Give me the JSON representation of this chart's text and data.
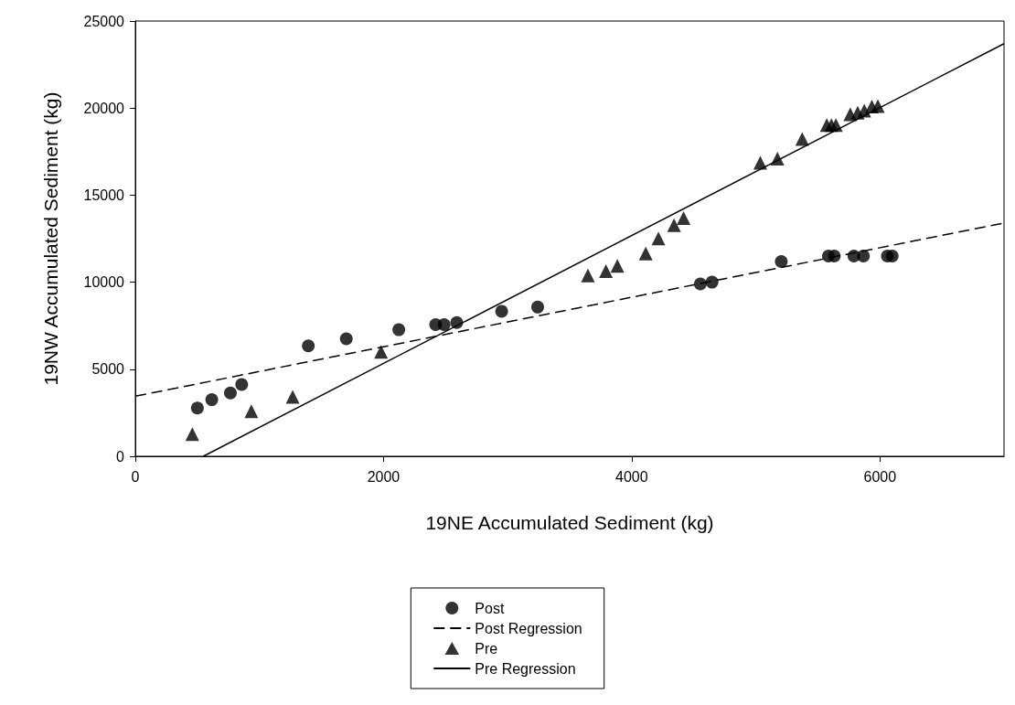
{
  "chart_data": {
    "type": "scatter",
    "xlabel": "19NE Accumulated Sediment (kg)",
    "ylabel": "19NW Accumulated Sediment (kg)",
    "xlim": [
      0,
      7000
    ],
    "ylim": [
      0,
      25000
    ],
    "xticks": [
      0,
      2000,
      4000,
      6000
    ],
    "yticks": [
      0,
      5000,
      10000,
      15000,
      20000,
      25000
    ],
    "grid": false,
    "legend": "bottom",
    "series": [
      {
        "name": "Post",
        "marker": "circle",
        "color": "#000000",
        "x": [
          500,
          616,
          766,
          857,
          1394,
          1700,
          2123,
          2420,
          2488,
          2590,
          2952,
          3242,
          4553,
          4647,
          5205,
          5585,
          5632,
          5790,
          5867,
          6060,
          6099
        ],
        "values": [
          2770,
          3250,
          3640,
          4120,
          6340,
          6750,
          7270,
          7560,
          7560,
          7680,
          8330,
          8570,
          9900,
          10000,
          11190,
          11500,
          11500,
          11500,
          11500,
          11500,
          11500
        ]
      },
      {
        "name": "Post Regression",
        "type": "line",
        "marker": "none",
        "line_style": "dashed",
        "color": "#000000",
        "x": [
          0,
          7000
        ],
        "values": [
          3450,
          13400
        ]
      },
      {
        "name": "Pre",
        "marker": "triangle",
        "color": "#000000",
        "x": [
          459,
          935,
          1268,
          1980,
          3647,
          3792,
          3884,
          4113,
          4215,
          4341,
          4418,
          5036,
          5174,
          5374,
          5572,
          5609,
          5645,
          5761,
          5821,
          5874,
          5935,
          5983
        ],
        "values": [
          1270,
          2590,
          3420,
          6000,
          10380,
          10630,
          10940,
          11650,
          12510,
          13280,
          13680,
          16860,
          17100,
          18230,
          19020,
          19020,
          19020,
          19640,
          19740,
          19850,
          20090,
          20120
        ]
      },
      {
        "name": "Pre Regression",
        "type": "line",
        "marker": "none",
        "line_style": "solid",
        "color": "#000000",
        "x": [
          548,
          7000
        ],
        "values": [
          0,
          23700
        ]
      }
    ]
  }
}
